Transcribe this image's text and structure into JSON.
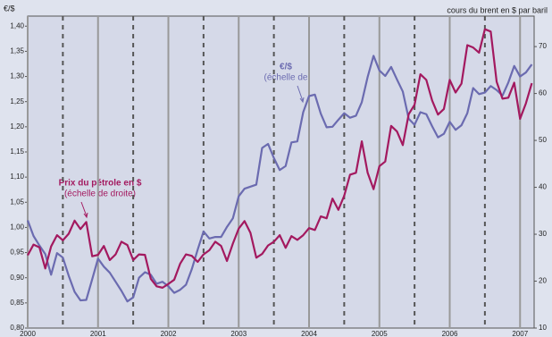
{
  "chart_data": {
    "type": "line",
    "y_label": "€/$",
    "y2_label": "cours du brent en $ par baril",
    "x": [
      2000,
      2000.083,
      2000.167,
      2000.25,
      2000.333,
      2000.417,
      2000.5,
      2000.583,
      2000.667,
      2000.75,
      2000.833,
      2000.917,
      2001,
      2001.083,
      2001.167,
      2001.25,
      2001.333,
      2001.417,
      2001.5,
      2001.583,
      2001.667,
      2001.75,
      2001.833,
      2001.917,
      2002,
      2002.083,
      2002.167,
      2002.25,
      2002.333,
      2002.417,
      2002.5,
      2002.583,
      2002.667,
      2002.75,
      2002.833,
      2002.917,
      2003,
      2003.083,
      2003.167,
      2003.25,
      2003.333,
      2003.417,
      2003.5,
      2003.583,
      2003.667,
      2003.75,
      2003.833,
      2003.917,
      2004,
      2004.083,
      2004.167,
      2004.25,
      2004.333,
      2004.417,
      2004.5,
      2004.583,
      2004.667,
      2004.75,
      2004.833,
      2004.917,
      2005,
      2005.083,
      2005.167,
      2005.25,
      2005.333,
      2005.417,
      2005.5,
      2005.583,
      2005.667,
      2005.75,
      2005.833,
      2005.917,
      2006,
      2006.083,
      2006.167,
      2006.25,
      2006.333,
      2006.417,
      2006.5,
      2006.583,
      2006.667,
      2006.75,
      2006.833,
      2006.917,
      2007,
      2007.083,
      2007.167
    ],
    "series": [
      {
        "name": "€/$",
        "color": "#6b6bb0",
        "values": [
          1.014,
          0.983,
          0.964,
          0.947,
          0.906,
          0.949,
          0.94,
          0.904,
          0.872,
          0.855,
          0.856,
          0.897,
          0.938,
          0.922,
          0.91,
          0.892,
          0.874,
          0.853,
          0.861,
          0.9,
          0.911,
          0.906,
          0.888,
          0.892,
          0.883,
          0.87,
          0.876,
          0.886,
          0.917,
          0.956,
          0.992,
          0.978,
          0.981,
          0.981,
          1.001,
          1.018,
          1.062,
          1.077,
          1.081,
          1.085,
          1.158,
          1.166,
          1.138,
          1.114,
          1.122,
          1.169,
          1.171,
          1.229,
          1.261,
          1.264,
          1.226,
          1.199,
          1.2,
          1.214,
          1.227,
          1.218,
          1.222,
          1.249,
          1.299,
          1.341,
          1.312,
          1.301,
          1.319,
          1.294,
          1.27,
          1.216,
          1.204,
          1.229,
          1.225,
          1.201,
          1.179,
          1.186,
          1.21,
          1.194,
          1.203,
          1.227,
          1.277,
          1.265,
          1.268,
          1.281,
          1.273,
          1.262,
          1.288,
          1.321,
          1.3,
          1.308,
          1.324
        ]
      },
      {
        "name": "Prix du pétrole en $",
        "color": "#a3195f",
        "axis": "y2",
        "values": [
          25.5,
          27.8,
          27.2,
          22.7,
          27.4,
          29.8,
          28.7,
          30.1,
          32.9,
          31.1,
          32.6,
          25.3,
          25.6,
          27.5,
          24.5,
          25.7,
          28.4,
          27.7,
          24.5,
          25.7,
          25.6,
          20.5,
          18.9,
          18.6,
          19.4,
          20.3,
          23.7,
          25.7,
          25.4,
          24.1,
          25.7,
          26.6,
          28.4,
          27.5,
          24.3,
          28.0,
          31.2,
          32.8,
          30.3,
          25.0,
          25.8,
          27.6,
          28.4,
          29.8,
          27.1,
          29.6,
          28.8,
          29.8,
          31.3,
          30.9,
          33.8,
          33.4,
          37.6,
          35.2,
          38.2,
          42.7,
          43.1,
          49.8,
          43.1,
          39.6,
          44.5,
          45.5,
          53.1,
          51.9,
          49.0,
          55.6,
          57.6,
          64.1,
          62.9,
          58.5,
          55.5,
          56.7,
          62.9,
          60.2,
          62.1,
          70.3,
          69.8,
          68.7,
          73.7,
          73.2,
          62.5,
          58.9,
          59.1,
          62.3,
          54.6,
          57.9,
          62.2
        ]
      }
    ],
    "annotations": [
      "(échelle de",
      "(échelle de droite)"
    ],
    "xlim": [
      2000,
      2007.2
    ],
    "xticks": [
      2000,
      2001,
      2002,
      2003,
      2004,
      2005,
      2006,
      2007
    ],
    "xminorticks": [
      2000.5,
      2001.5,
      2002.5,
      2003.5,
      2004.5,
      2005.5,
      2006.5
    ],
    "ylim": [
      0.8,
      1.42
    ],
    "yticks": [
      {
        "value": 0.8,
        "label": "0,80"
      },
      {
        "value": 0.85,
        "label": "0,85"
      },
      {
        "value": 0.9,
        "label": "0,90"
      },
      {
        "value": 0.95,
        "label": "0,95"
      },
      {
        "value": 1.0,
        "label": "1,00"
      },
      {
        "value": 1.05,
        "label": "1,05"
      },
      {
        "value": 1.1,
        "label": "1,10"
      },
      {
        "value": 1.15,
        "label": "1,15"
      },
      {
        "value": 1.2,
        "label": "1,20"
      },
      {
        "value": 1.25,
        "label": "1,25"
      },
      {
        "value": 1.3,
        "label": "1,30"
      },
      {
        "value": 1.35,
        "label": "1,35"
      },
      {
        "value": 1.4,
        "label": "1,40"
      }
    ],
    "y2lim": [
      10,
      76.5
    ],
    "y2ticks": [
      10,
      20,
      30,
      40,
      50,
      60,
      70
    ],
    "grid": true
  }
}
